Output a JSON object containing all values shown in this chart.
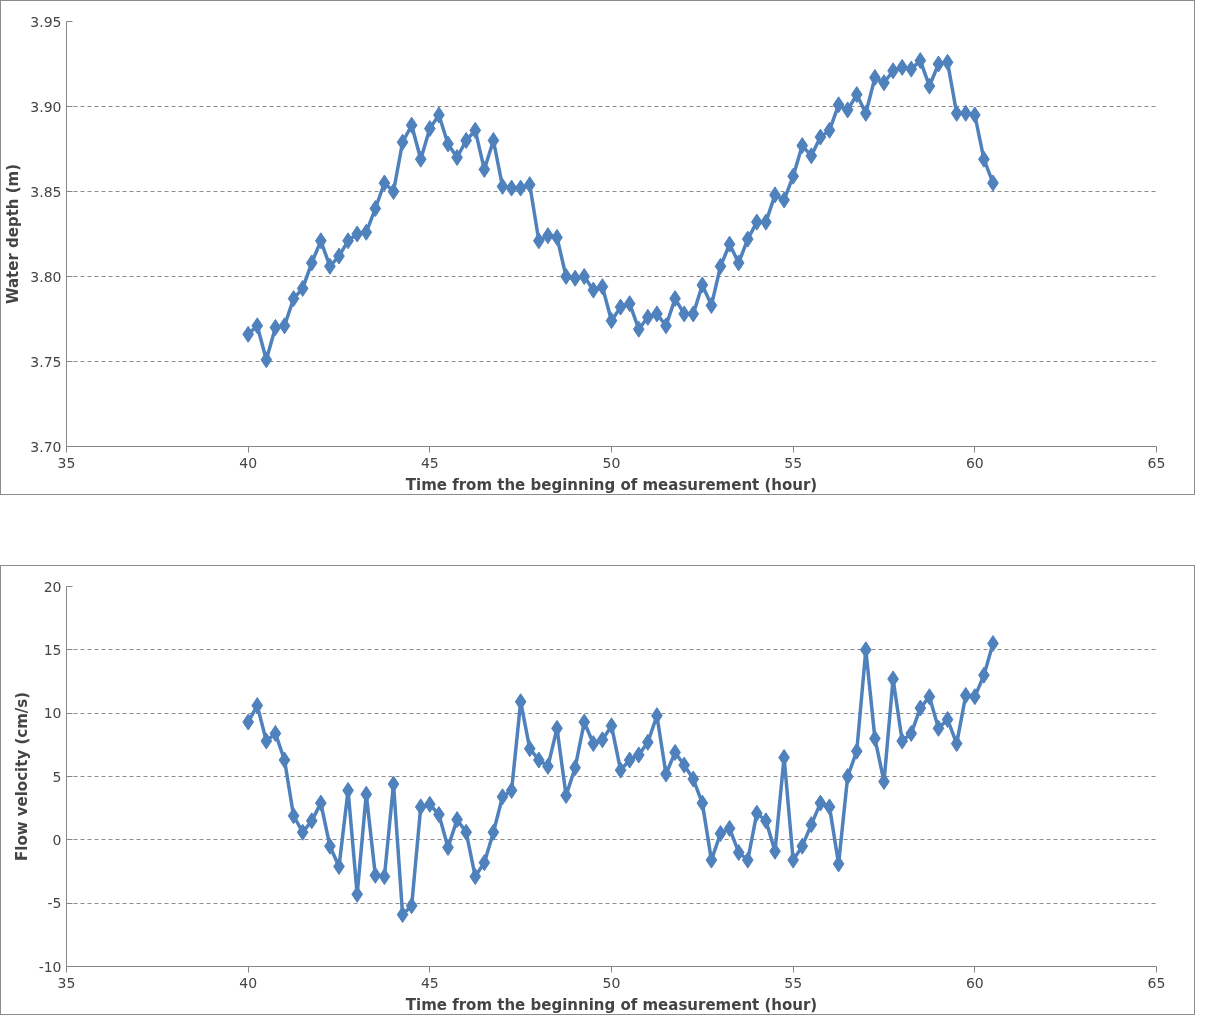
{
  "chart_data": [
    {
      "type": "line",
      "xlabel": "Time from the beginning of measurement (hour)",
      "ylabel": "Water depth (m)",
      "xlim": [
        35,
        65
      ],
      "xticks": [
        35,
        40,
        45,
        50,
        55,
        60,
        65
      ],
      "ylim": [
        3.7,
        3.95
      ],
      "yticks": [
        {
          "value": 3.7,
          "label": "3.70"
        },
        {
          "value": 3.75,
          "label": "3.75"
        },
        {
          "value": 3.8,
          "label": "3.80"
        },
        {
          "value": 3.85,
          "label": "3.85"
        },
        {
          "value": 3.9,
          "label": "3.90"
        },
        {
          "value": 3.95,
          "label": "3.95"
        }
      ],
      "grid": "y",
      "marker": "diamond",
      "line_style": "solid",
      "x": [
        40,
        40.25,
        40.5,
        40.75,
        41,
        41.25,
        41.5,
        41.75,
        42,
        42.25,
        42.5,
        42.75,
        43,
        43.25,
        43.5,
        43.75,
        44,
        44.25,
        44.5,
        44.75,
        45,
        45.25,
        45.5,
        45.75,
        46,
        46.25,
        46.5,
        46.75,
        47,
        47.25,
        47.5,
        47.75,
        48,
        48.25,
        48.5,
        48.75,
        49,
        49.25,
        49.5,
        49.75,
        50,
        50.25,
        50.5,
        50.75,
        51,
        51.25,
        51.5,
        51.75,
        52,
        52.25,
        52.5,
        52.75,
        53,
        53.25,
        53.5,
        53.75,
        54,
        54.25,
        54.5,
        54.75,
        55,
        55.25,
        55.5,
        55.75,
        56,
        56.25,
        56.5,
        56.75,
        57,
        57.25,
        57.5,
        57.75,
        58,
        58.25,
        58.5,
        58.75,
        59,
        59.25,
        59.5,
        59.75,
        60,
        60.25,
        60.5
      ],
      "series": [
        {
          "color": "#4f81bd",
          "values": [
            3.766,
            3.771,
            3.751,
            3.77,
            3.771,
            3.787,
            3.793,
            3.808,
            3.821,
            3.806,
            3.812,
            3.821,
            3.825,
            3.826,
            3.84,
            3.855,
            3.85,
            3.879,
            3.889,
            3.869,
            3.887,
            3.895,
            3.878,
            3.87,
            3.88,
            3.886,
            3.863,
            3.88,
            3.853,
            3.852,
            3.852,
            3.854,
            3.821,
            3.824,
            3.823,
            3.8,
            3.799,
            3.8,
            3.792,
            3.794,
            3.774,
            3.782,
            3.784,
            3.769,
            3.776,
            3.778,
            3.771,
            3.787,
            3.778,
            3.778,
            3.795,
            3.783,
            3.806,
            3.819,
            3.808,
            3.822,
            3.832,
            3.832,
            3.848,
            3.845,
            3.859,
            3.877,
            3.871,
            3.882,
            3.886,
            3.901,
            3.898,
            3.907,
            3.896,
            3.917,
            3.914,
            3.921,
            3.923,
            3.922,
            3.927,
            3.912,
            3.925,
            3.926,
            3.896,
            3.896,
            3.895,
            3.869,
            3.855
          ]
        }
      ]
    },
    {
      "type": "line",
      "xlabel": "Time from the beginning of measurement (hour)",
      "ylabel": "Flow velocity (cm/s)",
      "xlim": [
        35,
        65
      ],
      "xticks": [
        35,
        40,
        45,
        50,
        55,
        60,
        65
      ],
      "ylim": [
        -10,
        20
      ],
      "yticks": [
        -10,
        -5,
        0,
        5,
        10,
        15,
        20
      ],
      "grid": "y",
      "marker": "diamond",
      "line_style": "solid",
      "x": [
        40,
        40.25,
        40.5,
        40.75,
        41,
        41.25,
        41.5,
        41.75,
        42,
        42.25,
        42.5,
        42.75,
        43,
        43.25,
        43.5,
        43.75,
        44,
        44.25,
        44.5,
        44.75,
        45,
        45.25,
        45.5,
        45.75,
        46,
        46.25,
        46.5,
        46.75,
        47,
        47.25,
        47.5,
        47.75,
        48,
        48.25,
        48.5,
        48.75,
        49,
        49.25,
        49.5,
        49.75,
        50,
        50.25,
        50.5,
        50.75,
        51,
        51.25,
        51.5,
        51.75,
        52,
        52.25,
        52.5,
        52.75,
        53,
        53.25,
        53.5,
        53.75,
        54,
        54.25,
        54.5,
        54.75,
        55,
        55.25,
        55.5,
        55.75,
        56,
        56.25,
        56.5,
        56.75,
        57,
        57.25,
        57.5,
        57.75,
        58,
        58.25,
        58.5,
        58.75,
        59,
        59.25,
        59.5,
        59.75,
        60,
        60.25,
        60.5
      ],
      "series": [
        {
          "color": "#4f81bd",
          "values": [
            9.3,
            10.6,
            7.8,
            8.4,
            6.3,
            1.9,
            0.6,
            1.5,
            2.9,
            -0.5,
            -2.1,
            3.9,
            -4.3,
            3.6,
            -2.8,
            -2.9,
            4.4,
            -5.9,
            -5.2,
            2.6,
            2.8,
            2.0,
            -0.6,
            1.6,
            0.6,
            -2.9,
            -1.8,
            0.6,
            3.4,
            3.9,
            10.9,
            7.2,
            6.3,
            5.8,
            8.8,
            3.5,
            5.7,
            9.3,
            7.6,
            7.9,
            9.0,
            5.5,
            6.3,
            6.7,
            7.7,
            9.8,
            5.2,
            6.9,
            5.9,
            4.8,
            2.9,
            -1.6,
            0.5,
            0.9,
            -1.0,
            -1.6,
            2.1,
            1.5,
            -0.9,
            6.5,
            -1.6,
            -0.5,
            1.2,
            2.9,
            2.6,
            -1.9,
            5.0,
            7.0,
            15.0,
            8.0,
            4.6,
            12.7,
            7.8,
            8.4,
            10.4,
            11.3,
            8.8,
            9.5,
            7.6,
            11.4,
            11.3,
            13.0,
            15.5
          ]
        }
      ]
    }
  ]
}
